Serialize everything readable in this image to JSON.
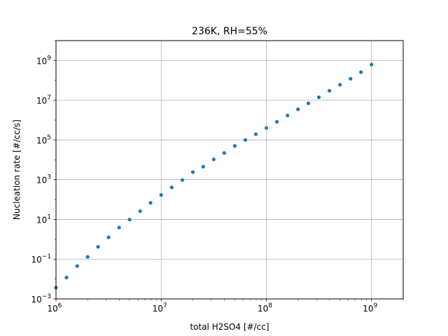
{
  "chart_data": {
    "type": "scatter",
    "title": "236K, RH=55%",
    "xlabel": "total H2SO4 [#/cc]",
    "ylabel": "Nucleation rate [#/cc/s]",
    "xscale": "log",
    "yscale": "log",
    "xlim": [
      1000000,
      2000000000
    ],
    "ylim": [
      0.001,
      10000000000
    ],
    "grid": true,
    "marker_color": "#1f77b4",
    "x_ticks": [
      {
        "base": "10",
        "exp": "6"
      },
      {
        "base": "10",
        "exp": "7"
      },
      {
        "base": "10",
        "exp": "8"
      },
      {
        "base": "10",
        "exp": "9"
      }
    ],
    "y_ticks": [
      {
        "base": "10",
        "exp": "−3"
      },
      {
        "base": "10",
        "exp": "−1"
      },
      {
        "base": "10",
        "exp": "1"
      },
      {
        "base": "10",
        "exp": "3"
      },
      {
        "base": "10",
        "exp": "5"
      },
      {
        "base": "10",
        "exp": "7"
      },
      {
        "base": "10",
        "exp": "9"
      }
    ],
    "x": [
      1000000,
      1260000,
      1590000,
      2000000,
      2510000,
      3160000,
      3980000,
      5010000,
      6310000,
      7940000,
      10000000,
      12600000,
      15900000,
      20000000,
      25100000,
      31600000,
      39800000,
      50100000,
      63100000,
      79400000,
      100000000,
      126000000,
      159000000,
      200000000,
      251000000,
      316000000,
      398000000,
      501000000,
      631000000,
      794000000,
      1000000000
    ],
    "y": [
      0.0037,
      0.012,
      0.045,
      0.13,
      0.42,
      1.25,
      3.9,
      9.8,
      26,
      68,
      170,
      410,
      960,
      2400,
      4500,
      10500,
      22000,
      50000,
      100000,
      195000,
      400000,
      820000,
      1700000,
      3500000,
      7000000,
      14000000,
      30000000,
      60000000,
      120000000,
      260000000,
      620000000
    ]
  }
}
